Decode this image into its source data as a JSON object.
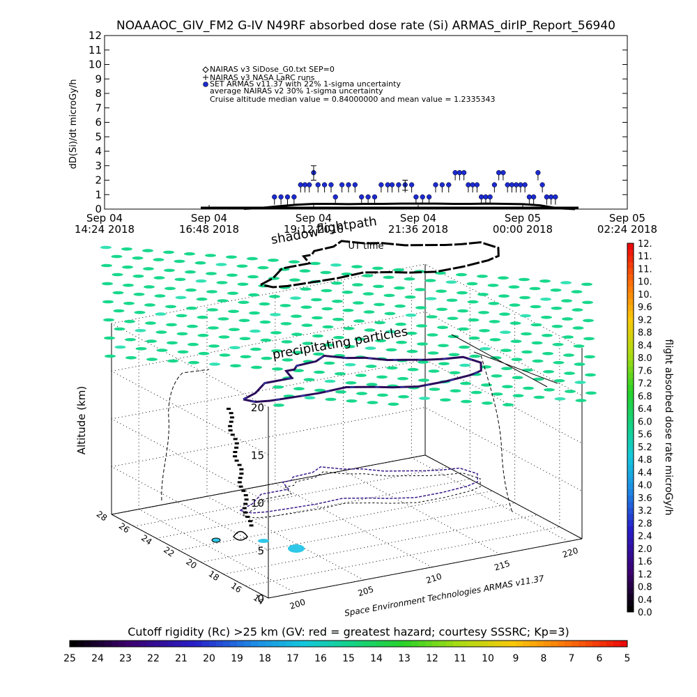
{
  "title": "NOAAAOC_GIV_FM2 G-IV   N49RF  absorbed dose rate (Si) ARMAS_dirIP_Report_56940",
  "chart_data": [
    {
      "type": "scatter",
      "title": "NOAAAOC_GIV_FM2 G-IV   N49RF  absorbed dose rate (Si) ARMAS_dirIP_Report_56940",
      "ylabel": "dD(Si)/dt microGy/h",
      "xlabel": "UT time",
      "ylim": [
        0,
        12
      ],
      "yticks": [
        "0",
        "1",
        "2",
        "3",
        "4",
        "5",
        "6",
        "7",
        "8",
        "9",
        "10",
        "11",
        "12"
      ],
      "xticks": [
        {
          "l1": "Sep 04",
          "l2": "14:24 2018"
        },
        {
          "l1": "Sep 04",
          "l2": "16:48 2018"
        },
        {
          "l1": "Sep 04",
          "l2": "19:12 2018"
        },
        {
          "l1": "Sep 04",
          "l2": "21:36 2018"
        },
        {
          "l1": "Sep 05",
          "l2": "00:00 2018"
        },
        {
          "l1": "Sep 05",
          "l2": "02:24 2018"
        }
      ],
      "x_hours": [
        14.4,
        16.8,
        19.2,
        21.6,
        24.0,
        26.4
      ],
      "legend": [
        "NAIRAS v3 SiDose_G0.txt SEP=0",
        "NAIRAS v3 NASA LaRC runs",
        "SET ARMAS v11.37 with 22% 1-sigma uncertainty",
        "average NAIRAS v2 30% 1-sigma uncertainty",
        "Cruise altitude median value = 0.84000000 and mean value = 1.2335343"
      ],
      "series": [
        {
          "name": "SET ARMAS v11.37 with 22% 1-sigma uncertainty",
          "color": "#1c2bd0",
          "points": [
            [
              18.3,
              0.84
            ],
            [
              18.45,
              0.84
            ],
            [
              18.6,
              0.84
            ],
            [
              18.75,
              0.84
            ],
            [
              18.9,
              1.68
            ],
            [
              19.0,
              1.68
            ],
            [
              19.1,
              1.68
            ],
            [
              19.2,
              2.52
            ],
            [
              19.3,
              1.68
            ],
            [
              19.45,
              1.68
            ],
            [
              19.6,
              1.68
            ],
            [
              19.7,
              0.84
            ],
            [
              19.85,
              1.68
            ],
            [
              20.0,
              1.68
            ],
            [
              20.15,
              1.68
            ],
            [
              20.3,
              0.84
            ],
            [
              20.45,
              0.84
            ],
            [
              20.6,
              0.84
            ],
            [
              20.75,
              1.68
            ],
            [
              20.9,
              1.68
            ],
            [
              21.0,
              1.68
            ],
            [
              21.15,
              1.68
            ],
            [
              21.3,
              1.68
            ],
            [
              21.45,
              1.68
            ],
            [
              21.55,
              0.84
            ],
            [
              21.7,
              0.84
            ],
            [
              21.85,
              0.84
            ],
            [
              22.0,
              1.68
            ],
            [
              22.15,
              1.68
            ],
            [
              22.3,
              1.68
            ],
            [
              22.45,
              2.52
            ],
            [
              22.55,
              2.52
            ],
            [
              22.65,
              2.52
            ],
            [
              22.75,
              1.68
            ],
            [
              22.85,
              1.68
            ],
            [
              22.95,
              1.68
            ],
            [
              23.05,
              0.84
            ],
            [
              23.15,
              0.84
            ],
            [
              23.25,
              0.84
            ],
            [
              23.35,
              1.68
            ],
            [
              23.45,
              2.52
            ],
            [
              23.55,
              2.52
            ],
            [
              23.65,
              1.68
            ],
            [
              23.75,
              1.68
            ],
            [
              23.85,
              1.68
            ],
            [
              23.95,
              1.68
            ],
            [
              24.05,
              1.68
            ],
            [
              24.15,
              0.84
            ],
            [
              24.25,
              0.84
            ],
            [
              24.35,
              2.52
            ],
            [
              24.45,
              1.68
            ],
            [
              24.55,
              0.84
            ],
            [
              24.65,
              0.84
            ],
            [
              24.75,
              0.84
            ]
          ]
        },
        {
          "name": "NAIRAS v3 NASA LaRC runs",
          "color": "#000000",
          "points": [
            [
              17.6,
              0.02
            ],
            [
              18.0,
              0.08
            ],
            [
              18.4,
              0.2
            ],
            [
              18.8,
              0.3
            ],
            [
              19.2,
              0.36
            ],
            [
              19.6,
              0.36
            ],
            [
              20.0,
              0.34
            ],
            [
              20.4,
              0.36
            ],
            [
              20.8,
              0.36
            ],
            [
              21.2,
              0.38
            ],
            [
              21.6,
              0.38
            ],
            [
              22.0,
              0.38
            ],
            [
              22.4,
              0.36
            ],
            [
              22.8,
              0.36
            ],
            [
              23.2,
              0.38
            ],
            [
              23.6,
              0.36
            ],
            [
              24.0,
              0.34
            ],
            [
              24.4,
              0.26
            ],
            [
              24.8,
              0.06
            ],
            [
              25.2,
              0.0
            ]
          ]
        }
      ],
      "error_bars": [
        {
          "x": 19.2,
          "low": 2.0,
          "high": 3.0
        },
        {
          "x": 21.3,
          "low": 1.3,
          "high": 2.0
        }
      ]
    },
    {
      "type": "scatter",
      "title": "",
      "zlabel": "Altitude (km)",
      "xticks": [
        "200",
        "205",
        "210",
        "215",
        "220"
      ],
      "yticks": [
        "14",
        "16",
        "18",
        "20",
        "22",
        "24",
        "26",
        "28"
      ],
      "zticks": [
        "0",
        "5",
        "10",
        "15",
        "20"
      ],
      "xlim": [
        198,
        221
      ],
      "ylim": [
        14,
        28
      ],
      "zlim": [
        0,
        20
      ],
      "annotations": [
        "shadow",
        "flightpath",
        "precipitating particles"
      ],
      "credit": "Space Environment Technologies ARMAS v11.37",
      "flight_path": [
        [
          203.2,
          23.5
        ],
        [
          204.5,
          24.0
        ],
        [
          206.0,
          25.0
        ],
        [
          208.0,
          25.0
        ],
        [
          208.4,
          26.0
        ],
        [
          209.0,
          26.0
        ],
        [
          209.5,
          26.4
        ],
        [
          211.0,
          26.5
        ],
        [
          212.0,
          27.0
        ],
        [
          213.0,
          26.2
        ],
        [
          214.0,
          25.8
        ],
        [
          215.0,
          25.0
        ],
        [
          216.0,
          24.6
        ],
        [
          217.2,
          24.1
        ],
        [
          218.2,
          23.8
        ],
        [
          219.4,
          23.6
        ],
        [
          219.8,
          22.5
        ],
        [
          219.0,
          21.5
        ],
        [
          218.0,
          21.2
        ],
        [
          216.0,
          21.0
        ],
        [
          214.0,
          21.0
        ],
        [
          212.5,
          21.5
        ],
        [
          211.5,
          22.0
        ],
        [
          210.0,
          22.6
        ],
        [
          208.0,
          22.5
        ],
        [
          206.0,
          22.6
        ],
        [
          204.5,
          22.7
        ],
        [
          203.6,
          22.9
        ],
        [
          203.2,
          23.5
        ]
      ]
    },
    {
      "type": "heatmap",
      "title": "flight absorbed dose rate microGy/h",
      "ticks": [
        "0.0",
        "0.4",
        "0.8",
        "1.2",
        "1.6",
        "2.0",
        "2.4",
        "2.8",
        "3.2",
        "3.6",
        "4.0",
        "4.4",
        "4.8",
        "5.2",
        "5.6",
        "6.0",
        "6.4",
        "6.8",
        "7.2",
        "7.6",
        "8.0",
        "8.4",
        "8.8",
        "9.2",
        "9.6",
        "10.",
        "10.",
        "11.",
        "11.",
        "12."
      ],
      "range": [
        0,
        12
      ]
    },
    {
      "type": "heatmap",
      "title": "Cutoff rigidity (Rc) >25 km (GV: red = greatest hazard; courtesy SSSRC; Kp=3)",
      "ticks": [
        "25",
        "24",
        "23",
        "22",
        "21",
        "20",
        "19",
        "18",
        "17",
        "16",
        "15",
        "14",
        "13",
        "12",
        "11",
        "10",
        "9",
        "8",
        "7",
        "6",
        "5"
      ],
      "range": [
        25,
        5
      ]
    }
  ]
}
